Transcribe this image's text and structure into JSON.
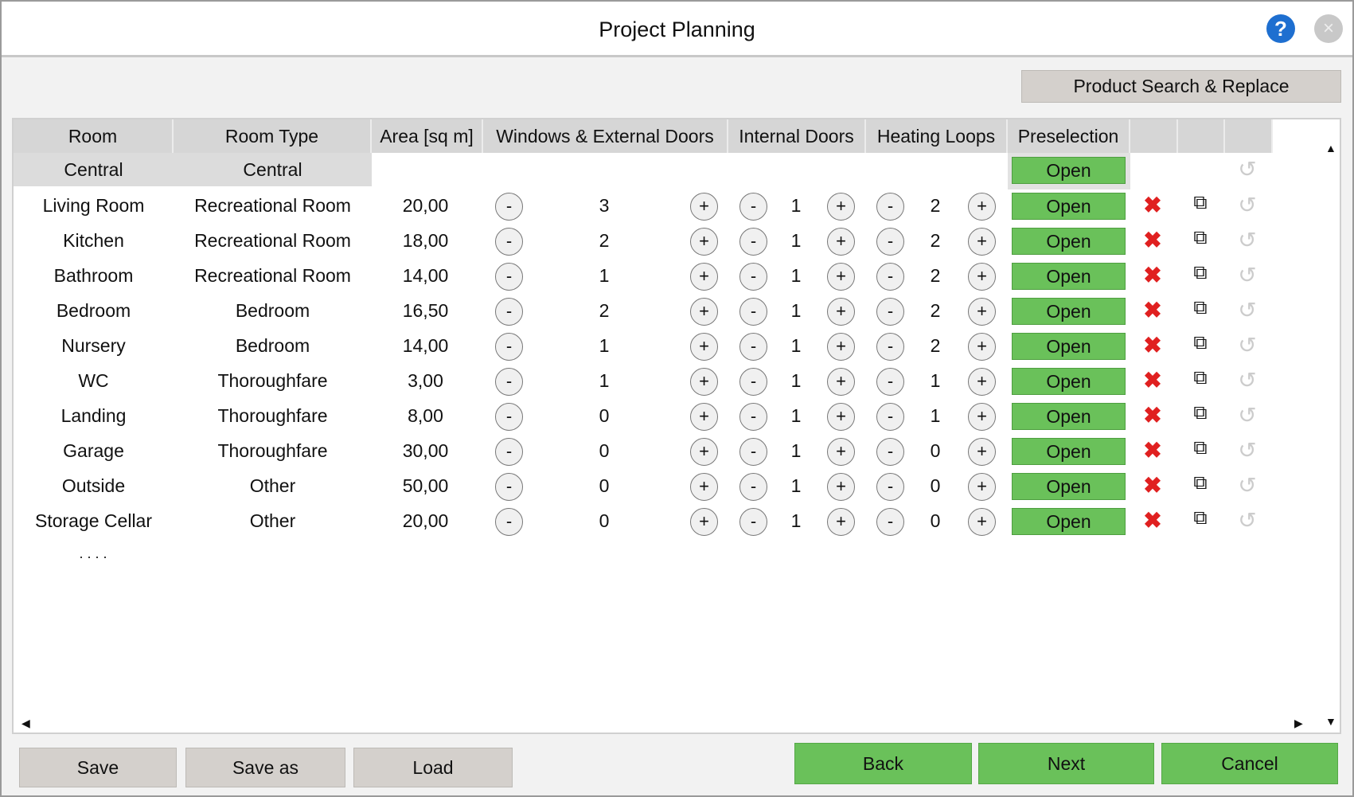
{
  "window": {
    "title": "Project Planning",
    "help_icon": "?",
    "close_icon": "×"
  },
  "toolbar": {
    "product_search": "Product Search & Replace"
  },
  "table": {
    "headers": [
      "Room",
      "Room Type",
      "Area [sq m]",
      "Windows & External Doors",
      "Internal Doors",
      "Heating Loops",
      "Preselection",
      "",
      "",
      ""
    ],
    "central": {
      "room": "Central",
      "type": "Central",
      "preselection": "Open"
    },
    "rows": [
      {
        "room": "Living Room",
        "type": "Recreational Room",
        "area": "20,00",
        "windows": "3",
        "internal": "1",
        "heating": "2",
        "preselection": "Open"
      },
      {
        "room": "Kitchen",
        "type": "Recreational Room",
        "area": "18,00",
        "windows": "2",
        "internal": "1",
        "heating": "2",
        "preselection": "Open"
      },
      {
        "room": "Bathroom",
        "type": "Recreational Room",
        "area": "14,00",
        "windows": "1",
        "internal": "1",
        "heating": "2",
        "preselection": "Open"
      },
      {
        "room": "Bedroom",
        "type": "Bedroom",
        "area": "16,50",
        "windows": "2",
        "internal": "1",
        "heating": "2",
        "preselection": "Open"
      },
      {
        "room": "Nursery",
        "type": "Bedroom",
        "area": "14,00",
        "windows": "1",
        "internal": "1",
        "heating": "2",
        "preselection": "Open"
      },
      {
        "room": "WC",
        "type": "Thoroughfare",
        "area": "3,00",
        "windows": "1",
        "internal": "1",
        "heating": "1",
        "preselection": "Open"
      },
      {
        "room": "Landing",
        "type": "Thoroughfare",
        "area": "8,00",
        "windows": "0",
        "internal": "1",
        "heating": "1",
        "preselection": "Open"
      },
      {
        "room": "Garage",
        "type": "Thoroughfare",
        "area": "30,00",
        "windows": "0",
        "internal": "1",
        "heating": "0",
        "preselection": "Open"
      },
      {
        "room": "Outside",
        "type": "Other",
        "area": "50,00",
        "windows": "0",
        "internal": "1",
        "heating": "0",
        "preselection": "Open"
      },
      {
        "room": "Storage Cellar",
        "type": "Other",
        "area": "20,00",
        "windows": "0",
        "internal": "1",
        "heating": "0",
        "preselection": "Open"
      }
    ],
    "more": ". . . .",
    "minus": "-",
    "plus": "+",
    "icons": {
      "delete": "delete-icon",
      "copy": "copy-icon",
      "undo": "undo-icon"
    }
  },
  "colors": {
    "accent_green": "#6ac15a",
    "delete_red": "#e02020",
    "help_blue": "#1e6fd0"
  },
  "footer": {
    "save": "Save",
    "save_as": "Save as",
    "load": "Load",
    "back": "Back",
    "next": "Next",
    "cancel": "Cancel"
  }
}
